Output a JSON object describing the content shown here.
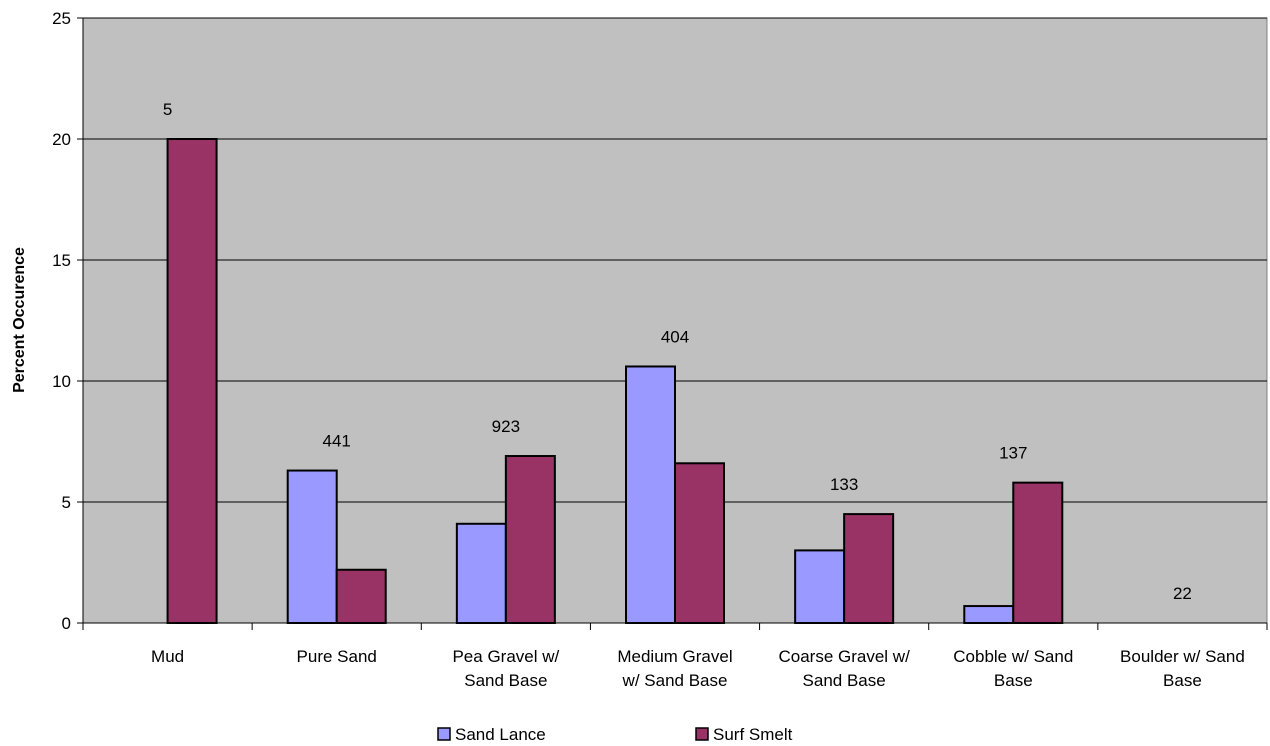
{
  "chart_data": {
    "type": "bar",
    "title": "",
    "xlabel": "",
    "ylabel": "Percent Occurence",
    "ylim": [
      0,
      25
    ],
    "yticks": [
      0,
      5,
      10,
      15,
      20,
      25
    ],
    "grid": true,
    "legend_position": "bottom",
    "plot_background": "#C0C0C0",
    "categories": [
      [
        "Mud"
      ],
      [
        "Pure Sand"
      ],
      [
        "Pea Gravel w/",
        "Sand Base"
      ],
      [
        "Medium Gravel",
        "w/ Sand Base"
      ],
      [
        "Coarse Gravel w/",
        "Sand Base"
      ],
      [
        "Cobble w/ Sand",
        "Base"
      ],
      [
        "Boulder w/ Sand",
        "Base"
      ]
    ],
    "series": [
      {
        "name": "Sand Lance",
        "color": "#9999FF",
        "values": [
          0,
          6.3,
          4.1,
          10.6,
          3.0,
          0.7,
          0
        ]
      },
      {
        "name": "Surf Smelt",
        "color": "#993366",
        "values": [
          20.0,
          2.2,
          6.9,
          6.6,
          4.5,
          5.8,
          0
        ]
      }
    ],
    "annotations": [
      "5",
      "441",
      "923",
      "404",
      "133",
      "137",
      "22"
    ]
  }
}
